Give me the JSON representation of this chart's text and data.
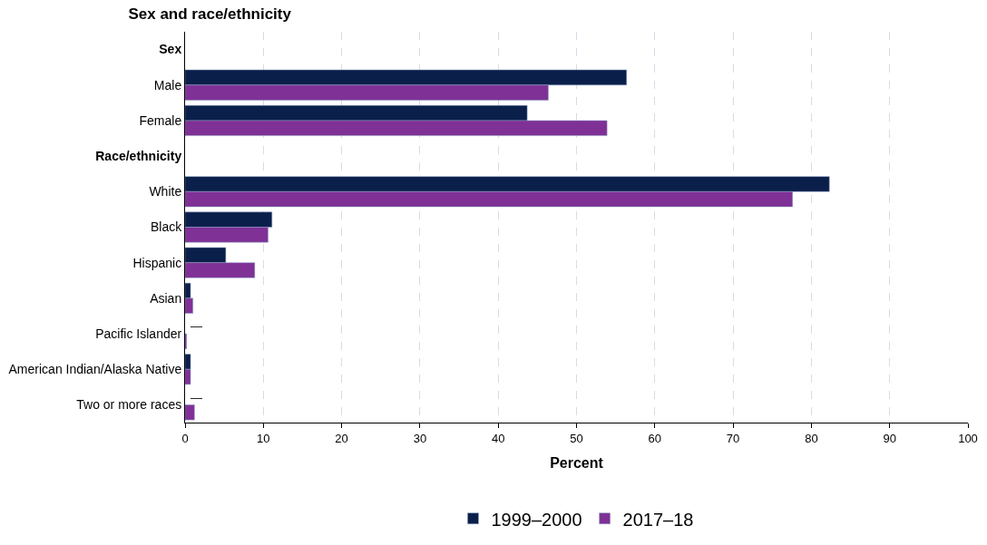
{
  "chart_data": {
    "type": "bar",
    "orientation": "horizontal",
    "title": "Sex and race/ethnicity",
    "xlabel": "Percent",
    "categories": [
      "Sex",
      "Male",
      "Female",
      "Race/ethnicity",
      "White",
      "Black",
      "Hispanic",
      "Asian",
      "Pacific Islander",
      "American Indian/Alaska Native",
      "Two or more races"
    ],
    "series": [
      {
        "name": "1999–2000",
        "color": "#0b1f4b",
        "values": [
          null,
          56.4,
          43.7,
          null,
          82.3,
          11.1,
          5.2,
          0.7,
          null,
          0.7,
          null
        ],
        "value_labels": [
          null,
          null,
          null,
          null,
          null,
          null,
          null,
          null,
          "—",
          null,
          "—"
        ]
      },
      {
        "name": "2017–18",
        "color": "#7f3196",
        "values": [
          null,
          46.4,
          53.9,
          null,
          77.6,
          10.6,
          8.9,
          1.0,
          0.2,
          0.7,
          1.2
        ]
      }
    ],
    "xlim": [
      0,
      100
    ],
    "xticks": [
      0,
      10,
      20,
      30,
      40,
      50,
      60,
      70,
      80,
      90,
      100
    ],
    "grid": "x",
    "legend": "bottom"
  }
}
